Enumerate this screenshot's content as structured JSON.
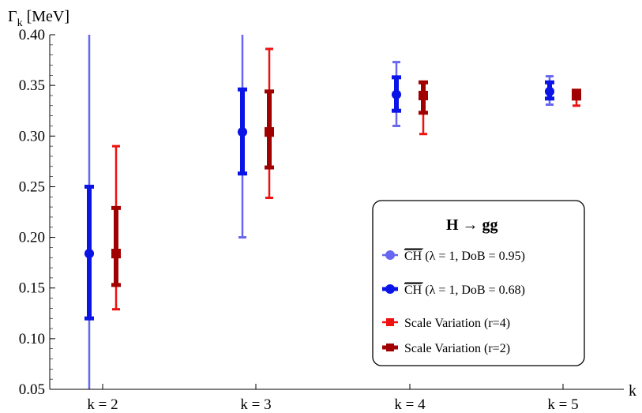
{
  "chart_data": {
    "type": "scatter",
    "title": "",
    "xlabel": "k",
    "ylabel": "Γ",
    "ylabel_sub": "k",
    "ylabel_unit": " [MeV]",
    "ylim": [
      0.05,
      0.4
    ],
    "yticks": [
      0.05,
      0.1,
      0.15,
      0.2,
      0.25,
      0.3,
      0.35,
      0.4
    ],
    "ytick_labels": [
      "0.05",
      "0.10",
      "0.15",
      "0.20",
      "0.25",
      "0.30",
      "0.35",
      "0.40"
    ],
    "categories": [
      "k = 2",
      "k = 3",
      "k = 4",
      "k = 5"
    ],
    "series": [
      {
        "key": "ch95",
        "color": "#6666f0",
        "marker": "circle",
        "center": [
          0.184,
          0.304,
          0.341,
          0.344
        ],
        "low": [
          0.05,
          0.2,
          0.31,
          0.331
        ],
        "high": [
          0.4,
          0.4,
          0.373,
          0.359
        ]
      },
      {
        "key": "ch68",
        "color": "#0a14e6",
        "marker": "circle",
        "center": [
          0.184,
          0.304,
          0.341,
          0.344
        ],
        "low": [
          0.12,
          0.263,
          0.325,
          0.337
        ],
        "high": [
          0.25,
          0.346,
          0.358,
          0.353
        ]
      },
      {
        "key": "sv4",
        "color": "#ee1111",
        "marker": "square",
        "center": [
          0.184,
          0.304,
          0.34,
          0.342
        ],
        "low": [
          0.129,
          0.239,
          0.302,
          0.33
        ],
        "high": [
          0.29,
          0.386,
          0.353,
          0.344
        ]
      },
      {
        "key": "sv2",
        "color": "#a00000",
        "marker": "square",
        "center": [
          0.184,
          0.304,
          0.34,
          0.342
        ],
        "low": [
          0.153,
          0.269,
          0.323,
          0.337
        ],
        "high": [
          0.229,
          0.344,
          0.353,
          0.344
        ]
      }
    ],
    "legend": {
      "position": "lower-right",
      "title": "H → gg",
      "entries": [
        {
          "overline": "CH",
          "rest": " (λ = 1,  DoB = 0.95)",
          "series": "ch95"
        },
        {
          "overline": "CH",
          "rest": " (λ = 1,  DoB = 0.68)",
          "series": "ch68"
        },
        {
          "overline": "",
          "rest": "Scale Variation (r=4)",
          "series": "sv4"
        },
        {
          "overline": "",
          "rest": "Scale Variation (r=2)",
          "series": "sv2"
        }
      ]
    }
  }
}
